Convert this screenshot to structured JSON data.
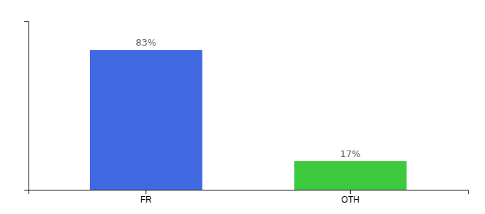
{
  "chart_data": {
    "type": "bar",
    "categories": [
      "FR",
      "OTH"
    ],
    "values": [
      83,
      17
    ],
    "value_labels": [
      "83%",
      "17%"
    ],
    "colors": [
      "#4169e1",
      "#3dc93d"
    ],
    "ylim": [
      0,
      100
    ],
    "yticks": [],
    "data_labels": true,
    "tick_labels": "x",
    "grid": false
  }
}
